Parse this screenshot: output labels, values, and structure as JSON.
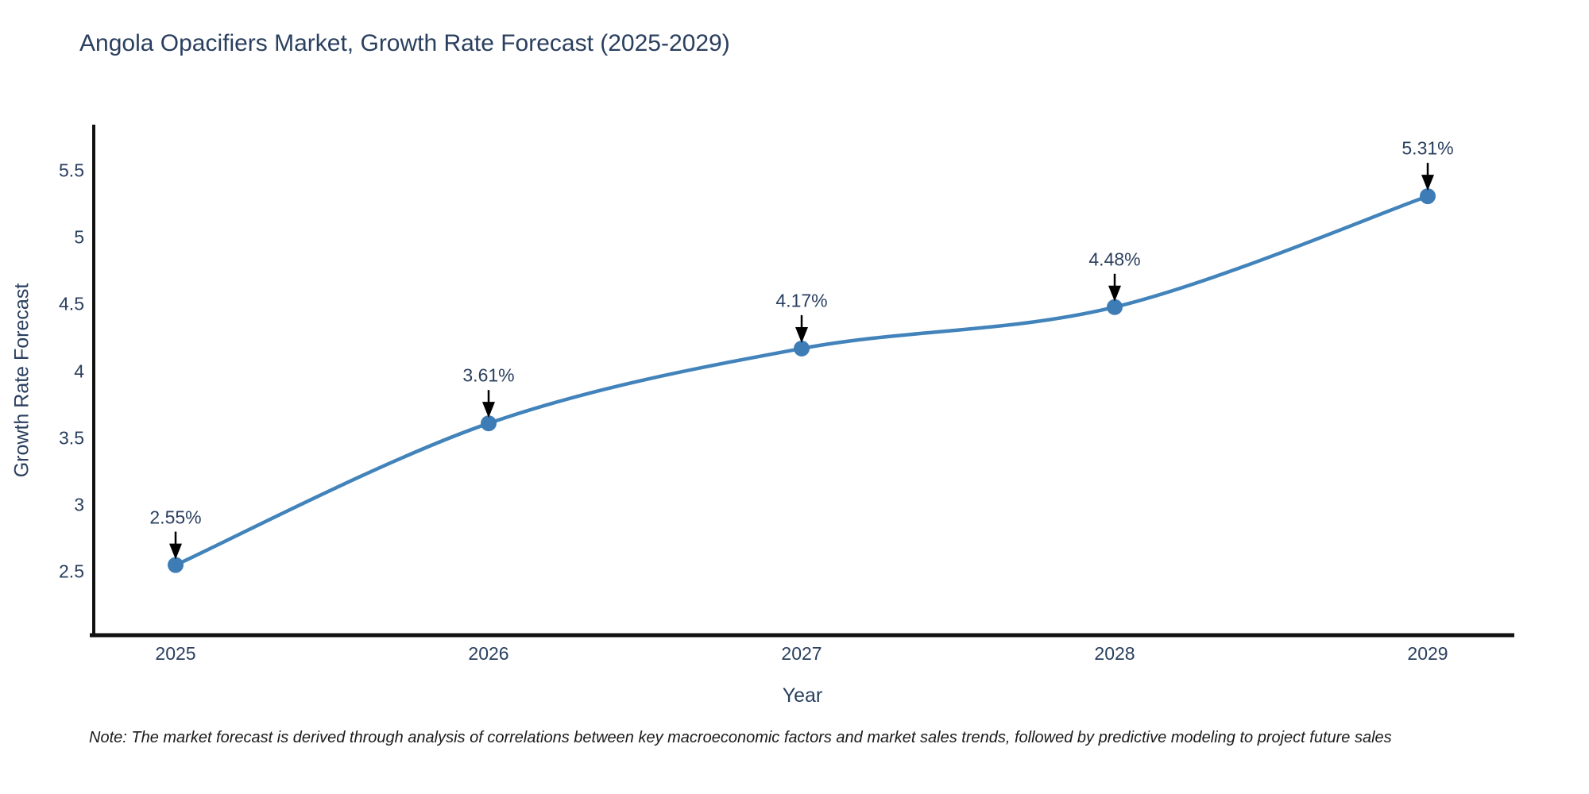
{
  "chart_data": {
    "type": "line",
    "title": "Angola Opacifiers Market, Growth Rate Forecast (2025-2029)",
    "xlabel": "Year",
    "ylabel": "Growth Rate Forecast",
    "x": [
      2025,
      2026,
      2027,
      2028,
      2029
    ],
    "categories": [
      "2025",
      "2026",
      "2027",
      "2028",
      "2029"
    ],
    "series": [
      {
        "name": "Growth Rate Forecast",
        "values": [
          2.55,
          3.61,
          4.17,
          4.48,
          5.31
        ]
      }
    ],
    "point_labels": [
      "2.55%",
      "3.61%",
      "4.17%",
      "4.48%",
      "5.31%"
    ],
    "y_ticks": [
      2.5,
      3,
      3.5,
      4,
      4.5,
      5,
      5.5
    ],
    "y_tick_labels": [
      "2.5",
      "3",
      "3.5",
      "4",
      "4.5",
      "5",
      "5.5"
    ],
    "ylim": [
      2.02,
      5.92
    ],
    "line_shape": "spline",
    "grid": false,
    "legend_shown": false,
    "colors": {
      "line": "#4183ba",
      "marker": "#3d7cb5",
      "axis": "#111111",
      "text": "#2a3f5f",
      "arrow": "#000000"
    }
  },
  "note": {
    "text": "Note: The market forecast is derived through analysis of correlations between key macroeconomic factors and market sales trends, followed by predictive modeling to project future sales"
  }
}
